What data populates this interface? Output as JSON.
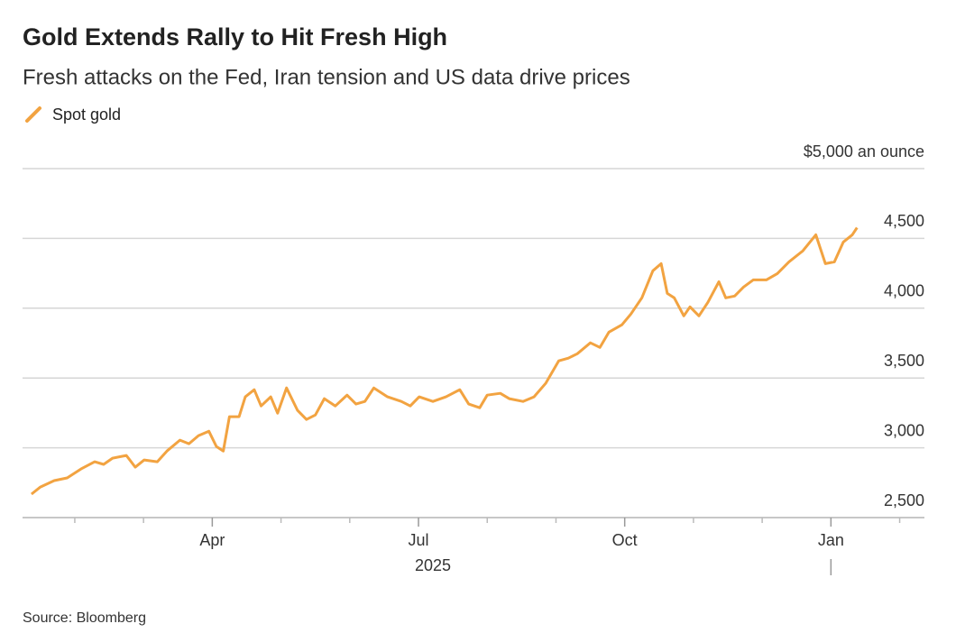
{
  "chart_data": {
    "type": "line",
    "title": "Gold Extends Rally to Hit Fresh High",
    "subtitle": "Fresh attacks on the Fed, Iran tension and US data drive prices",
    "source": "Source: Bloomberg",
    "year_label": "2025",
    "xlim": [
      0.24,
      13.36
    ],
    "xticks": [
      {
        "value": 3,
        "label": "Apr"
      },
      {
        "value": 6,
        "label": "Jul"
      },
      {
        "value": 9,
        "label": "Oct"
      },
      {
        "value": 12,
        "label": "Jan"
      }
    ],
    "xminorticks": [
      1,
      2,
      4,
      5,
      7,
      8,
      10,
      11,
      13
    ],
    "ylim": [
      2500,
      5000
    ],
    "yticks": [
      {
        "value": 2500,
        "label": "2,500"
      },
      {
        "value": 3000,
        "label": "3,000"
      },
      {
        "value": 3500,
        "label": "3,500"
      },
      {
        "value": 4000,
        "label": "4,000"
      },
      {
        "value": 4500,
        "label": "4,500"
      },
      {
        "value": 5000,
        "label": "$5,000 an ounce"
      }
    ],
    "grid": true,
    "x": [
      0.37,
      0.5,
      0.7,
      0.89,
      1.09,
      1.29,
      1.42,
      1.55,
      1.75,
      1.88,
      2.01,
      2.2,
      2.34,
      2.53,
      2.66,
      2.8,
      2.95,
      3.06,
      3.16,
      3.25,
      3.39,
      3.48,
      3.61,
      3.71,
      3.85,
      3.95,
      4.08,
      4.24,
      4.37,
      4.5,
      4.63,
      4.79,
      4.96,
      5.09,
      5.22,
      5.35,
      5.55,
      5.75,
      5.88,
      6.01,
      6.21,
      6.4,
      6.6,
      6.73,
      6.89,
      7.0,
      7.19,
      7.32,
      7.52,
      7.68,
      7.85,
      8.04,
      8.18,
      8.31,
      8.5,
      8.64,
      8.77,
      8.96,
      9.09,
      9.25,
      9.41,
      9.53,
      9.62,
      9.72,
      9.86,
      9.95,
      10.08,
      10.21,
      10.37,
      10.47,
      10.6,
      10.73,
      10.87,
      11.06,
      11.22,
      11.39,
      11.59,
      11.78,
      11.92,
      12.05,
      12.18,
      12.31,
      12.38
    ],
    "series": [
      {
        "name": "Spot gold",
        "color": "#f2a341",
        "values": [
          2668,
          2719,
          2765,
          2784,
          2848,
          2900,
          2881,
          2926,
          2945,
          2861,
          2913,
          2900,
          2977,
          3055,
          3029,
          3087,
          3119,
          3010,
          2977,
          3223,
          3223,
          3365,
          3416,
          3300,
          3365,
          3248,
          3429,
          3268,
          3203,
          3235,
          3352,
          3300,
          3377,
          3313,
          3332,
          3429,
          3365,
          3332,
          3300,
          3365,
          3332,
          3365,
          3416,
          3313,
          3287,
          3377,
          3390,
          3352,
          3332,
          3365,
          3461,
          3623,
          3642,
          3674,
          3752,
          3719,
          3829,
          3881,
          3958,
          4074,
          4268,
          4319,
          4106,
          4074,
          3945,
          4010,
          3945,
          4042,
          4190,
          4074,
          4087,
          4152,
          4203,
          4203,
          4248,
          4332,
          4410,
          4526,
          4319,
          4332,
          4474,
          4526,
          4577
        ]
      }
    ]
  }
}
